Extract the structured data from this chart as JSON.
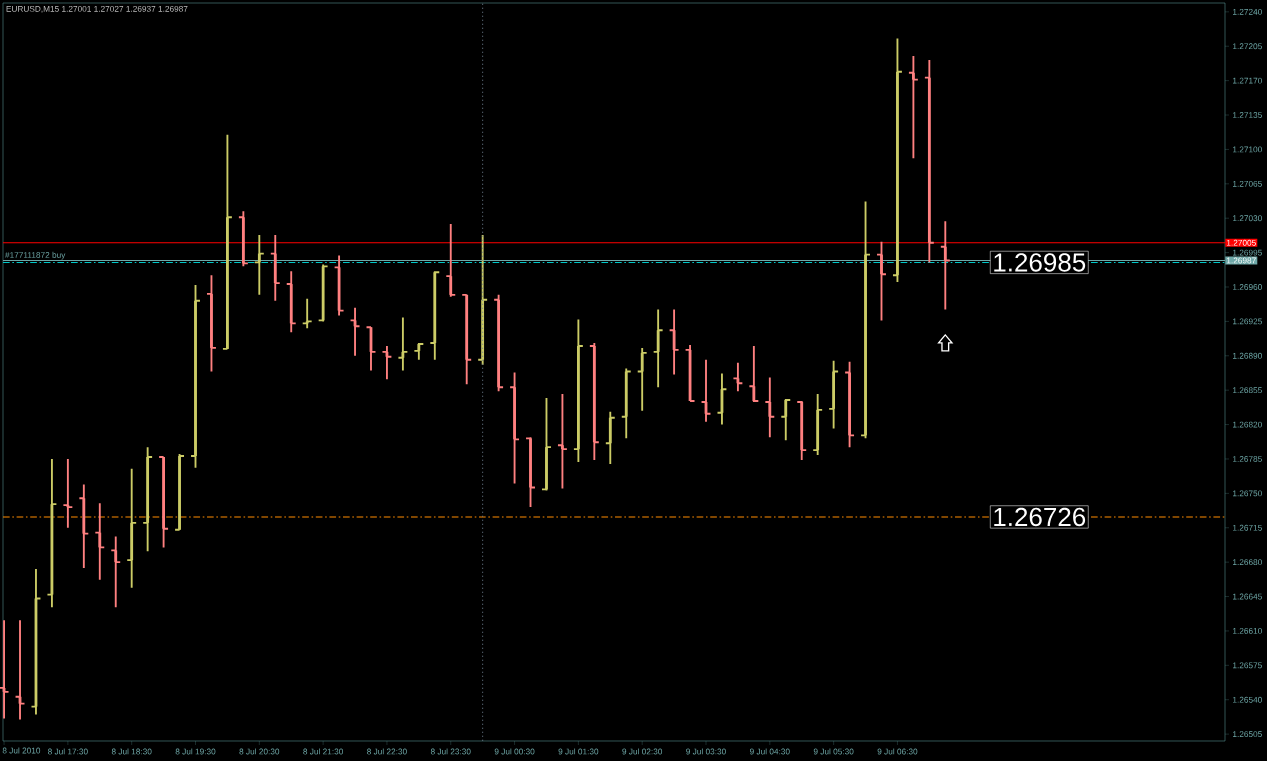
{
  "chart_data": {
    "type": "candlestick",
    "title": "EURUSD,M15  1.27001 1.27027 1.26937 1.26987",
    "x": [
      "2010-07-08T16:30",
      "2010-07-08T16:45",
      "2010-07-08T17:00",
      "2010-07-08T17:15",
      "2010-07-08T17:30",
      "2010-07-08T17:45",
      "2010-07-08T18:00",
      "2010-07-08T18:15",
      "2010-07-08T18:30",
      "2010-07-08T18:45",
      "2010-07-08T19:00",
      "2010-07-08T19:15",
      "2010-07-08T19:30",
      "2010-07-08T19:45",
      "2010-07-08T20:00",
      "2010-07-08T20:15",
      "2010-07-08T20:30",
      "2010-07-08T20:45",
      "2010-07-08T21:00",
      "2010-07-08T21:15",
      "2010-07-08T21:30",
      "2010-07-08T21:45",
      "2010-07-08T22:00",
      "2010-07-08T22:15",
      "2010-07-08T22:30",
      "2010-07-08T22:45",
      "2010-07-08T23:00",
      "2010-07-08T23:15",
      "2010-07-08T23:30",
      "2010-07-08T23:45",
      "2010-07-09T00:00",
      "2010-07-09T00:15",
      "2010-07-09T00:30",
      "2010-07-09T00:45",
      "2010-07-09T01:00",
      "2010-07-09T01:15",
      "2010-07-09T01:30",
      "2010-07-09T01:45",
      "2010-07-09T02:00",
      "2010-07-09T02:15",
      "2010-07-09T02:30",
      "2010-07-09T02:45",
      "2010-07-09T03:00",
      "2010-07-09T03:15",
      "2010-07-09T03:30",
      "2010-07-09T03:45",
      "2010-07-09T04:00",
      "2010-07-09T04:15",
      "2010-07-09T04:30",
      "2010-07-09T04:45",
      "2010-07-09T05:00",
      "2010-07-09T05:15",
      "2010-07-09T05:30",
      "2010-07-09T05:45",
      "2010-07-09T06:00",
      "2010-07-09T06:15",
      "2010-07-09T06:30",
      "2010-07-09T06:45",
      "2010-07-09T07:00",
      "2010-07-09T07:15"
    ],
    "ohlc": [
      [
        1.26552,
        1.26621,
        1.26521,
        1.26548
      ],
      [
        1.26543,
        1.26621,
        1.2652,
        1.26536
      ],
      [
        1.26533,
        1.26673,
        1.26525,
        1.26643
      ],
      [
        1.26647,
        1.26785,
        1.26634,
        1.26739
      ],
      [
        1.26738,
        1.26785,
        1.26715,
        1.26736
      ],
      [
        1.26745,
        1.26759,
        1.26674,
        1.26709
      ],
      [
        1.2671,
        1.2674,
        1.26662,
        1.26695
      ],
      [
        1.26692,
        1.26706,
        1.26634,
        1.2668
      ],
      [
        1.26682,
        1.26775,
        1.26654,
        1.2672
      ],
      [
        1.2672,
        1.26797,
        1.26691,
        1.26787
      ],
      [
        1.26787,
        1.26787,
        1.26695,
        1.26714
      ],
      [
        1.26713,
        1.2679,
        1.26713,
        1.26788
      ],
      [
        1.26788,
        1.26962,
        1.26776,
        1.26946
      ],
      [
        1.26953,
        1.26972,
        1.26874,
        1.26898
      ],
      [
        1.26897,
        1.27115,
        1.26897,
        1.27031
      ],
      [
        1.27031,
        1.27037,
        1.26981,
        1.26984
      ],
      [
        1.26985,
        1.27013,
        1.26952,
        1.26994
      ],
      [
        1.26994,
        1.27013,
        1.26946,
        1.26964
      ],
      [
        1.26963,
        1.26976,
        1.26914,
        1.26923
      ],
      [
        1.26923,
        1.26948,
        1.26918,
        1.26925
      ],
      [
        1.26926,
        1.26983,
        1.26925,
        1.26981
      ],
      [
        1.2698,
        1.26992,
        1.26931,
        1.26936
      ],
      [
        1.26926,
        1.26939,
        1.2689,
        1.2692
      ],
      [
        1.26919,
        1.26919,
        1.26875,
        1.26894
      ],
      [
        1.26894,
        1.269,
        1.26866,
        1.26889
      ],
      [
        1.26888,
        1.26929,
        1.26875,
        1.26894
      ],
      [
        1.26895,
        1.26903,
        1.26886,
        1.26902
      ],
      [
        1.26903,
        1.26976,
        1.26886,
        1.26975
      ],
      [
        1.26971,
        1.27024,
        1.2695,
        1.26952
      ],
      [
        1.26952,
        1.26952,
        1.26861,
        1.26886
      ],
      [
        1.26886,
        1.27013,
        1.26881,
        1.26947
      ],
      [
        1.26947,
        1.26952,
        1.26854,
        1.26858
      ],
      [
        1.26858,
        1.26873,
        1.2676,
        1.26805
      ],
      [
        1.26806,
        1.26807,
        1.26736,
        1.26756
      ],
      [
        1.26754,
        1.26847,
        1.26753,
        1.26797
      ],
      [
        1.26799,
        1.26851,
        1.26755,
        1.26795
      ],
      [
        1.26795,
        1.26927,
        1.26782,
        1.269
      ],
      [
        1.269,
        1.26903,
        1.26784,
        1.26802
      ],
      [
        1.26801,
        1.26833,
        1.2678,
        1.26827
      ],
      [
        1.26828,
        1.26877,
        1.26806,
        1.26874
      ],
      [
        1.26874,
        1.26898,
        1.26834,
        1.26893
      ],
      [
        1.26894,
        1.26937,
        1.26858,
        1.26916
      ],
      [
        1.26916,
        1.26937,
        1.26871,
        1.26896
      ],
      [
        1.26896,
        1.26901,
        1.26844,
        1.26844
      ],
      [
        1.26843,
        1.26886,
        1.26823,
        1.26831
      ],
      [
        1.26832,
        1.26872,
        1.2682,
        1.26856
      ],
      [
        1.26867,
        1.26883,
        1.26854,
        1.26862
      ],
      [
        1.26859,
        1.269,
        1.26843,
        1.26844
      ],
      [
        1.26843,
        1.26868,
        1.26807,
        1.26828
      ],
      [
        1.26828,
        1.26846,
        1.26804,
        1.26845
      ],
      [
        1.26843,
        1.26844,
        1.26784,
        1.26794
      ],
      [
        1.26794,
        1.26851,
        1.26789,
        1.26835
      ],
      [
        1.26836,
        1.26885,
        1.26816,
        1.26874
      ],
      [
        1.26873,
        1.26884,
        1.26797,
        1.26809
      ],
      [
        1.26809,
        1.27047,
        1.26806,
        1.26993
      ],
      [
        1.26993,
        1.27006,
        1.26926,
        1.26973
      ],
      [
        1.26972,
        1.27213,
        1.26965,
        1.27179
      ],
      [
        1.27178,
        1.27195,
        1.27091,
        1.27171
      ],
      [
        1.27173,
        1.27191,
        1.26985,
        1.27005
      ],
      [
        1.27001,
        1.27027,
        1.26937,
        1.26987
      ]
    ],
    "colors": [
      "#ff8080",
      "#ff8080",
      "#cccc66",
      "#cccc66",
      "#ff8080",
      "#ff8080",
      "#ff8080",
      "#ff8080",
      "#cccc66",
      "#cccc66",
      "#ff8080",
      "#cccc66",
      "#cccc66",
      "#ff8080",
      "#cccc66",
      "#ff8080",
      "#cccc66",
      "#ff8080",
      "#ff8080",
      "#cccc66",
      "#cccc66",
      "#ff8080",
      "#ff8080",
      "#ff8080",
      "#ff8080",
      "#cccc66",
      "#cccc66",
      "#cccc66",
      "#ff8080",
      "#ff8080",
      "#cccc66",
      "#ff8080",
      "#ff8080",
      "#ff8080",
      "#cccc66",
      "#ff8080",
      "#cccc66",
      "#ff8080",
      "#cccc66",
      "#cccc66",
      "#cccc66",
      "#cccc66",
      "#ff8080",
      "#ff8080",
      "#ff8080",
      "#cccc66",
      "#ff8080",
      "#ff8080",
      "#ff8080",
      "#cccc66",
      "#ff8080",
      "#cccc66",
      "#cccc66",
      "#ff8080",
      "#cccc66",
      "#ff8080",
      "#cccc66",
      "#ff8080",
      "#ff8080",
      "#ff8080"
    ],
    "xlim": [
      "2010-07-08T16:29",
      "2010-07-09T11:38"
    ],
    "xticks": [
      {
        "value": "2010-07-08T16:30",
        "label": "8 Jul 2010"
      },
      {
        "value": "2010-07-08T17:30",
        "label": "8 Jul 17:30"
      },
      {
        "value": "2010-07-08T18:30",
        "label": "8 Jul 18:30"
      },
      {
        "value": "2010-07-08T19:30",
        "label": "8 Jul 19:30"
      },
      {
        "value": "2010-07-08T20:30",
        "label": "8 Jul 20:30"
      },
      {
        "value": "2010-07-08T21:30",
        "label": "8 Jul 21:30"
      },
      {
        "value": "2010-07-08T22:30",
        "label": "8 Jul 22:30"
      },
      {
        "value": "2010-07-08T23:30",
        "label": "8 Jul 23:30"
      },
      {
        "value": "2010-07-09T00:30",
        "label": "9 Jul 00:30"
      },
      {
        "value": "2010-07-09T01:30",
        "label": "9 Jul 01:30"
      },
      {
        "value": "2010-07-09T02:30",
        "label": "9 Jul 02:30"
      },
      {
        "value": "2010-07-09T03:30",
        "label": "9 Jul 03:30"
      },
      {
        "value": "2010-07-09T04:30",
        "label": "9 Jul 04:30"
      },
      {
        "value": "2010-07-09T05:30",
        "label": "9 Jul 05:30"
      },
      {
        "value": "2010-07-09T06:30",
        "label": "9 Jul 06:30"
      }
    ],
    "ylim": [
      1.26498,
      1.27249
    ],
    "yticks": [
      {
        "value": 1.26505,
        "label": "1.26505"
      },
      {
        "value": 1.2654,
        "label": "1.26540"
      },
      {
        "value": 1.26575,
        "label": "1.26575"
      },
      {
        "value": 1.2661,
        "label": "1.26610"
      },
      {
        "value": 1.26645,
        "label": "1.26645"
      },
      {
        "value": 1.2668,
        "label": "1.26680"
      },
      {
        "value": 1.26715,
        "label": "1.26715"
      },
      {
        "value": 1.2675,
        "label": "1.26750"
      },
      {
        "value": 1.26785,
        "label": "1.26785"
      },
      {
        "value": 1.2682,
        "label": "1.26820"
      },
      {
        "value": 1.26855,
        "label": "1.26855"
      },
      {
        "value": 1.2689,
        "label": "1.26890"
      },
      {
        "value": 1.26925,
        "label": "1.26925"
      },
      {
        "value": 1.2696,
        "label": "1.26960"
      },
      {
        "value": 1.26995,
        "label": "1.26995"
      },
      {
        "value": 1.2703,
        "label": "1.27030"
      },
      {
        "value": 1.27065,
        "label": "1.27065"
      },
      {
        "value": 1.271,
        "label": "1.27100"
      },
      {
        "value": 1.27135,
        "label": "1.27135"
      },
      {
        "value": 1.2717,
        "label": "1.27170"
      },
      {
        "value": 1.27205,
        "label": "1.27205"
      },
      {
        "value": 1.2724,
        "label": "1.27240"
      }
    ],
    "ref_lines": [
      {
        "axis": "y",
        "value": 1.27005,
        "label": "1.27005",
        "color": "#ff0000",
        "line_style": "solid"
      },
      {
        "axis": "y",
        "value": 1.26987,
        "label": "1.26987",
        "color": "#6fa8a8",
        "line_style": "solid"
      },
      {
        "axis": "y",
        "value": 1.26985,
        "label": "1.26985",
        "color": "#00c8c8",
        "line_style": "dashed"
      },
      {
        "axis": "y",
        "value": 1.26726,
        "label": "1.26726",
        "color": "#ff8c00",
        "line_style": "dashed"
      },
      {
        "axis": "x",
        "value": "2010-07-09T00:00",
        "color": "#708090",
        "line_style": "dotted"
      }
    ],
    "annotations": [
      {
        "text": "#177111872 buy",
        "x": "2010-07-08T16:30",
        "y": 1.26987
      }
    ]
  }
}
